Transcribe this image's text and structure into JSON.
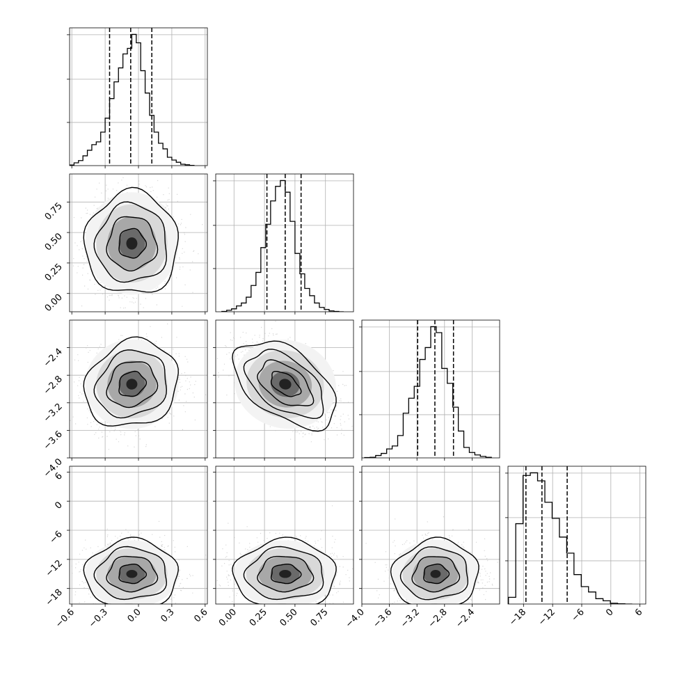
{
  "chart_data": {
    "type": "corner",
    "grid": true,
    "params": [
      {
        "ticks": [
          -0.6,
          -0.3,
          0.0,
          0.3,
          0.6
        ],
        "tick_labels": [
          "−0.6",
          "−0.3",
          "0.0",
          "0.3",
          "0.6"
        ],
        "range": [
          -0.62,
          0.62
        ]
      },
      {
        "ticks": [
          0.0,
          0.25,
          0.5,
          0.75
        ],
        "tick_labels": [
          "0.00",
          "0.25",
          "0.50",
          "0.75"
        ],
        "range": [
          -0.15,
          0.98
        ]
      },
      {
        "ticks": [
          -4.0,
          -3.6,
          -3.2,
          -2.8,
          -2.4
        ],
        "tick_labels": [
          "−4.0",
          "−3.6",
          "−3.2",
          "−2.8",
          "−2.4"
        ],
        "range": [
          -4.0,
          -2.0
        ]
      },
      {
        "ticks": [
          -18,
          -12,
          -6,
          0,
          6
        ],
        "tick_labels": [
          "−18",
          "−12",
          "−6",
          "0",
          "6"
        ],
        "range": [
          -21.2,
          7.2
        ]
      }
    ],
    "histograms": [
      {
        "param": 0,
        "quantiles": [
          -0.26,
          -0.07,
          0.12
        ],
        "bins": [
          -0.62,
          -0.58,
          -0.54,
          -0.5,
          -0.46,
          -0.42,
          -0.38,
          -0.34,
          -0.3,
          -0.26,
          -0.22,
          -0.18,
          -0.14,
          -0.1,
          -0.06,
          -0.02,
          0.02,
          0.06,
          0.1,
          0.14,
          0.18,
          0.22,
          0.26,
          0.3,
          0.34,
          0.38,
          0.42,
          0.46,
          0.5
        ],
        "counts": [
          2,
          10,
          18,
          35,
          55,
          75,
          85,
          120,
          170,
          240,
          300,
          350,
          400,
          420,
          470,
          440,
          340,
          260,
          180,
          120,
          80,
          60,
          30,
          20,
          12,
          5,
          3,
          1
        ]
      },
      {
        "param": 1,
        "quantiles": [
          0.27,
          0.42,
          0.55
        ],
        "bins": [
          -0.1,
          -0.06,
          -0.02,
          0.02,
          0.06,
          0.1,
          0.14,
          0.18,
          0.22,
          0.26,
          0.3,
          0.34,
          0.38,
          0.42,
          0.46,
          0.5,
          0.54,
          0.58,
          0.62,
          0.66,
          0.7,
          0.74,
          0.78,
          0.82,
          0.86,
          0.9
        ],
        "counts": [
          1,
          5,
          10,
          20,
          30,
          50,
          90,
          135,
          220,
          300,
          380,
          430,
          450,
          410,
          310,
          200,
          130,
          80,
          55,
          30,
          15,
          8,
          3,
          1,
          0
        ]
      },
      {
        "param": 2,
        "quantiles": [
          -3.19,
          -2.94,
          -2.67
        ],
        "bins": [
          -3.96,
          -3.88,
          -3.8,
          -3.72,
          -3.64,
          -3.56,
          -3.48,
          -3.4,
          -3.32,
          -3.24,
          -3.16,
          -3.08,
          -3.0,
          -2.92,
          -2.84,
          -2.76,
          -2.68,
          -2.6,
          -2.52,
          -2.44,
          -2.36,
          -2.28,
          -2.2,
          -2.12
        ],
        "counts": [
          1,
          2,
          8,
          15,
          30,
          40,
          75,
          150,
          200,
          240,
          330,
          370,
          440,
          420,
          300,
          250,
          170,
          90,
          35,
          18,
          10,
          5,
          2
        ]
      },
      {
        "param": 3,
        "quantiles": [
          -17.5,
          -14.2,
          -9.0
        ],
        "bins": [
          -21.1,
          -19.6,
          -18.1,
          -16.6,
          -15.1,
          -13.6,
          -12.1,
          -10.6,
          -9.1,
          -7.6,
          -6.1,
          -4.6,
          -3.1,
          -1.6,
          -0.1,
          1.4,
          2.9,
          4.4
        ],
        "counts": [
          25,
          300,
          480,
          490,
          460,
          380,
          320,
          250,
          190,
          110,
          65,
          45,
          20,
          12,
          3,
          1,
          0
        ]
      }
    ],
    "scatter2d": [
      {
        "x_param": 0,
        "y_param": 1,
        "mean": [
          -0.06,
          0.41
        ],
        "sd": [
          0.2,
          0.2
        ],
        "rho": 0.0
      },
      {
        "x_param": 0,
        "y_param": 2,
        "mean": [
          -0.06,
          -2.93
        ],
        "sd": [
          0.2,
          0.3
        ],
        "rho": 0.15
      },
      {
        "x_param": 1,
        "y_param": 2,
        "mean": [
          0.42,
          -2.93
        ],
        "sd": [
          0.2,
          0.3
        ],
        "rho": -0.5
      },
      {
        "x_param": 0,
        "y_param": 3,
        "mean": [
          -0.06,
          -15.0
        ],
        "sd": [
          0.2,
          3.3
        ],
        "rho": 0.0
      },
      {
        "x_param": 1,
        "y_param": 3,
        "mean": [
          0.42,
          -15.0
        ],
        "sd": [
          0.2,
          3.3
        ],
        "rho": 0.0
      },
      {
        "x_param": 2,
        "y_param": 3,
        "mean": [
          -2.93,
          -15.0
        ],
        "sd": [
          0.3,
          3.3
        ],
        "rho": 0.05
      }
    ]
  }
}
